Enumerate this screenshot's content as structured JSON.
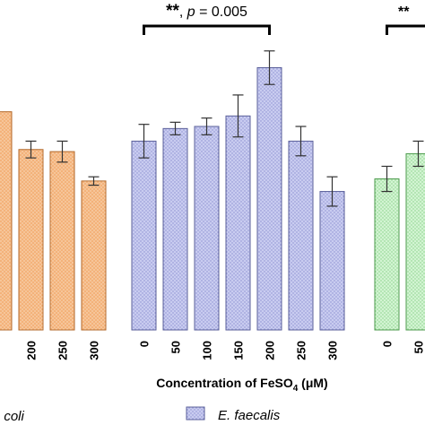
{
  "chart_data": {
    "type": "bar",
    "title": "",
    "xlabel": {
      "prefix": "Concentration of FeSO",
      "subscript": "4",
      "suffix": " (μM)"
    },
    "ylabel": "",
    "ylim": [
      0,
      1.4
    ],
    "groups": [
      {
        "name": ". coli",
        "color": "#f3b27a",
        "stroke": "#b36a2c",
        "categories": [
          "",
          "200",
          "250",
          "300"
        ],
        "values": [
          1.04,
          0.86,
          0.85,
          0.71
        ],
        "errors": [
          0.0,
          0.04,
          0.05,
          0.02
        ]
      },
      {
        "name": "E. faecalis",
        "color": "#c4c8ee",
        "stroke": "#5a5f9a",
        "categories": [
          "0",
          "50",
          "100",
          "150",
          "200",
          "250",
          "300"
        ],
        "values": [
          0.9,
          0.96,
          0.97,
          1.02,
          1.25,
          0.9,
          0.66
        ],
        "errors": [
          0.08,
          0.03,
          0.04,
          0.1,
          0.08,
          0.07,
          0.07
        ]
      },
      {
        "name": "",
        "color": "#c8f0c8",
        "stroke": "#4c9a4c",
        "categories": [
          "0",
          "50"
        ],
        "values": [
          0.72,
          0.84
        ],
        "errors": [
          0.06,
          0.06
        ]
      }
    ],
    "annotations": [
      {
        "stars": "**",
        "sep": ", ",
        "p_label": "p",
        "p_rest": " = 0.005",
        "group": "E. faecalis"
      },
      {
        "stars": "**",
        "group": "third"
      }
    ],
    "legend": {
      "placement": "bottom",
      "entries": [
        ". coli",
        "E. faecalis"
      ]
    }
  }
}
